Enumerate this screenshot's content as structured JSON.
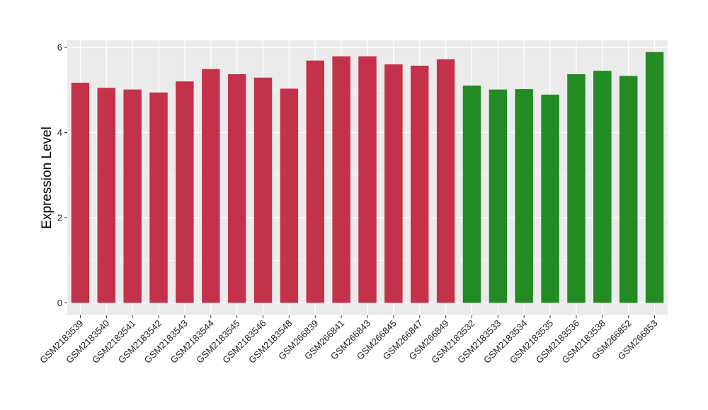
{
  "chart_data": {
    "type": "bar",
    "title": "",
    "xlabel": "",
    "ylabel": "Expression Level",
    "ylim": [
      0,
      6.05
    ],
    "yticks": [
      0,
      2,
      4,
      6
    ],
    "grid": true,
    "legend": "none",
    "colors": {
      "group_a": "#C4314B",
      "group_b": "#228B22",
      "panel_bg": "#EBEBEB",
      "grid": "#FFFFFF"
    },
    "categories": [
      "GSM2183539",
      "GSM2183540",
      "GSM2183541",
      "GSM2183542",
      "GSM2183543",
      "GSM2183544",
      "GSM2183545",
      "GSM2183546",
      "GSM2183548",
      "GSM266839",
      "GSM266841",
      "GSM266843",
      "GSM266845",
      "GSM266847",
      "GSM266849",
      "GSM2183532",
      "GSM2183533",
      "GSM2183534",
      "GSM2183535",
      "GSM2183536",
      "GSM2183538",
      "GSM266852",
      "GSM266853"
    ],
    "values": [
      5.17,
      5.05,
      5.01,
      4.94,
      5.2,
      5.49,
      5.37,
      5.29,
      5.03,
      5.69,
      5.79,
      5.79,
      5.6,
      5.57,
      5.72,
      5.1,
      5.01,
      5.02,
      4.89,
      5.37,
      5.45,
      5.33,
      5.89
    ],
    "groups": [
      "group_a",
      "group_a",
      "group_a",
      "group_a",
      "group_a",
      "group_a",
      "group_a",
      "group_a",
      "group_a",
      "group_a",
      "group_a",
      "group_a",
      "group_a",
      "group_a",
      "group_a",
      "group_b",
      "group_b",
      "group_b",
      "group_b",
      "group_b",
      "group_b",
      "group_b",
      "group_b"
    ]
  }
}
